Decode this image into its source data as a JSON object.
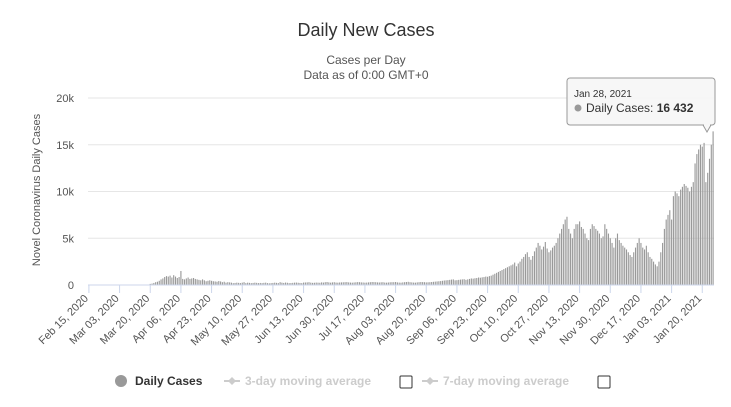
{
  "chart_data": {
    "type": "bar",
    "title": "Daily New Cases",
    "subtitle_line1": "Cases per Day",
    "subtitle_line2": "Data as of 0:00 GMT+0",
    "ylabel": "Novel Coronavirus Daily Cases",
    "xlabel": "",
    "ylim": [
      0,
      20000
    ],
    "y_ticks": [
      "0",
      "5k",
      "10k",
      "15k",
      "20k"
    ],
    "x_ticks": [
      "Feb 15, 2020",
      "Mar 03, 2020",
      "Mar 20, 2020",
      "Apr 06, 2020",
      "Apr 23, 2020",
      "May 10, 2020",
      "May 27, 2020",
      "Jun 13, 2020",
      "Jun 30, 2020",
      "Jul 17, 2020",
      "Aug 03, 2020",
      "Aug 20, 2020",
      "Sep 06, 2020",
      "Sep 23, 2020",
      "Oct 10, 2020",
      "Oct 27, 2020",
      "Nov 13, 2020",
      "Nov 30, 2020",
      "Dec 17, 2020",
      "Jan 03, 2021",
      "Jan 20, 2021"
    ],
    "bar_color": "#999999",
    "grid": true,
    "series": [
      {
        "name": "Daily Cases",
        "segments": [
          {
            "start": "Feb 15, 2020",
            "values": [
              0,
              0,
              0,
              0,
              0,
              0,
              0,
              0,
              0,
              0,
              0,
              0,
              0,
              0,
              0,
              0,
              0,
              0,
              0,
              0,
              0,
              0,
              0,
              0,
              0,
              0,
              0,
              0,
              0,
              0,
              0,
              0,
              0,
              0
            ]
          },
          {
            "start": "Mar 20, 2020",
            "values": [
              120,
              150,
              220,
              300,
              350,
              450,
              600,
              700,
              850,
              950,
              900,
              1000,
              800,
              1050,
              900,
              750,
              850,
              1500,
              650,
              600,
              700,
              800,
              650,
              700,
              750,
              650,
              600,
              550,
              500,
              600,
              500,
              400,
              450
            ]
          },
          {
            "start": "Apr 23, 2020",
            "values": [
              500,
              450,
              400,
              380,
              350,
              420,
              380,
              300,
              350,
              250,
              300,
              280,
              250,
              200,
              220,
              250,
              230,
              200,
              250,
              300,
              200,
              250,
              230,
              200,
              220,
              250,
              230,
              200,
              220,
              200,
              230,
              250,
              200,
              180
            ]
          },
          {
            "start": "May 27, 2020",
            "values": [
              200,
              220,
              250,
              230,
              200,
              300,
              250,
              220,
              260,
              240,
              200,
              210,
              230,
              250,
              260,
              240,
              220,
              200,
              260,
              270,
              280,
              300,
              250,
              230,
              240,
              260,
              250,
              240,
              280,
              260,
              300,
              320,
              280,
              250
            ]
          },
          {
            "start": "Jun 30, 2020",
            "values": [
              280,
              300,
              260,
              250,
              270,
              280,
              290,
              300,
              310,
              280,
              260,
              250,
              270,
              290,
              310,
              300,
              280,
              270,
              250,
              260,
              280,
              300,
              320,
              310,
              300,
              280,
              270,
              290,
              300,
              260,
              250,
              270,
              290,
              300
            ]
          },
          {
            "start": "Aug 03, 2020",
            "values": [
              300,
              320,
              280,
              260,
              250,
              280,
              300,
              320,
              340,
              300,
              280,
              260,
              250,
              280,
              300,
              320,
              310,
              300,
              280,
              290,
              300,
              320,
              340,
              360,
              380,
              400,
              420,
              450,
              480,
              500,
              520,
              550,
              580,
              600
            ]
          },
          {
            "start": "Sep 06, 2020",
            "values": [
              500,
              520,
              550,
              580,
              600,
              620,
              550,
              600,
              650,
              700,
              680,
              720,
              750,
              800,
              780,
              820,
              850,
              900,
              880,
              950,
              1000,
              1100,
              1200,
              1300,
              1400,
              1500,
              1600,
              1700,
              1800,
              1900,
              2000,
              2100,
              2200,
              2400
            ]
          },
          {
            "start": "Oct 10, 2020",
            "values": [
              2000,
              2300,
              2500,
              2800,
              3000,
              3300,
              3500,
              3000,
              2700,
              3100,
              3600,
              4000,
              4500,
              4200,
              3800,
              4100,
              4600,
              3900,
              3500,
              3700,
              4000,
              4200,
              4500,
              5000,
              5500,
              6000,
              6500,
              7000,
              7300,
              6000,
              5500,
              5000,
              6000,
              6500
            ]
          },
          {
            "start": "Nov 13, 2020",
            "values": [
              6500,
              6800,
              6200,
              6000,
              5500,
              5000,
              4800,
              6000,
              6500,
              6300,
              6000,
              5800,
              5500,
              5000,
              5200,
              6500,
              6000,
              5500,
              5000,
              4500,
              4000,
              5000,
              5500,
              4800,
              4500,
              4200,
              4000,
              3800,
              3500,
              3200,
              3000,
              3500,
              4000,
              4500
            ]
          },
          {
            "start": "Dec 17, 2020",
            "values": [
              5000,
              4500,
              4000,
              3800,
              4200,
              3500,
              3000,
              2800,
              2500,
              2200,
              2000,
              2500,
              3500,
              4500,
              6000,
              7000,
              7500,
              8000,
              7000,
              9500,
              10000,
              9800,
              9500,
              10200,
              10500,
              10800,
              10600,
              10400,
              10000,
              10500,
              11000,
              13000,
              14000,
              14500
            ]
          },
          {
            "start": "Jan 20, 2021",
            "values": [
              15000,
              14800,
              15200,
              11000,
              12000,
              13500,
              15000,
              16432
            ]
          }
        ]
      }
    ],
    "tooltip": {
      "date": "Jan 28, 2021",
      "label": "Daily Cases: ",
      "value": "16 432"
    },
    "legend": [
      {
        "label": "Daily Cases",
        "color": "#999999",
        "state": "active"
      },
      {
        "label": "3-day moving average",
        "color": "#cccccc",
        "state": "inactive"
      },
      {
        "label": "7-day moving average",
        "color": "#cccccc",
        "state": "inactive"
      }
    ]
  }
}
